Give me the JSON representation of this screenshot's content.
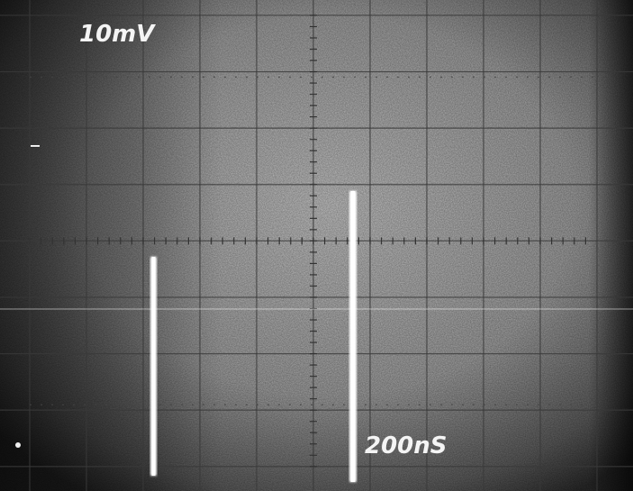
{
  "scale_labels": {
    "vertical": "10mV",
    "horizontal": "200nS"
  }
}
